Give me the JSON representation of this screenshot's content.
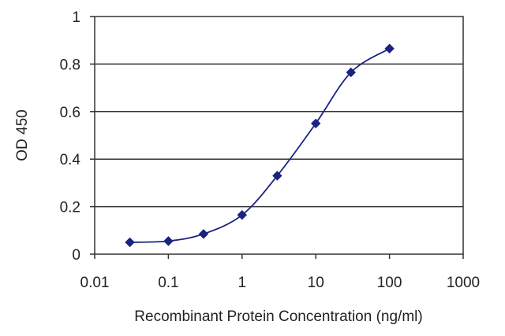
{
  "chart_data": {
    "type": "line",
    "xlabel": "Recombinant Protein Concentration (ng/ml)",
    "ylabel": "OD 450",
    "xscale": "log",
    "xlim": [
      0.01,
      1000
    ],
    "ylim": [
      0,
      1
    ],
    "x_ticks": [
      "0.01",
      "0.1",
      "1",
      "10",
      "100",
      "1000"
    ],
    "y_ticks": [
      "0",
      "0.2",
      "0.4",
      "0.6",
      "0.8",
      "1"
    ],
    "grid": "horizontal",
    "series": [
      {
        "x": [
          0.03,
          0.1,
          0.3,
          1,
          3,
          10,
          30,
          100
        ],
        "y": [
          0.05,
          0.055,
          0.085,
          0.165,
          0.33,
          0.55,
          0.765,
          0.865
        ]
      }
    ],
    "colors": {
      "series": "#1a237e",
      "grid": "#333333"
    }
  }
}
